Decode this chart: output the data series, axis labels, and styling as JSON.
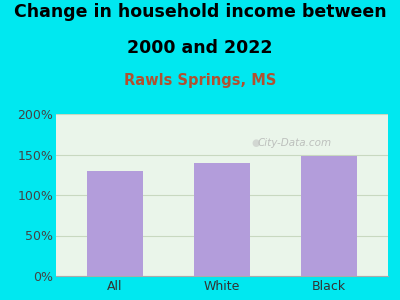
{
  "title_line1": "Change in household income between",
  "title_line2": "2000 and 2022",
  "subtitle": "Rawls Springs, MS",
  "categories": [
    "All",
    "White",
    "Black"
  ],
  "values": [
    130,
    140,
    148
  ],
  "bar_color": "#b39ddb",
  "background_color": "#00e8f0",
  "plot_bg_color": "#eaf5ea",
  "ylim": [
    0,
    200
  ],
  "yticks": [
    0,
    50,
    100,
    150,
    200
  ],
  "ytick_labels": [
    "0%",
    "50%",
    "100%",
    "150%",
    "200%"
  ],
  "title_fontsize": 12.5,
  "subtitle_fontsize": 10.5,
  "subtitle_color": "#b05030",
  "tick_fontsize": 9,
  "xtick_fontsize": 9,
  "watermark": "City-Data.com",
  "grid_color": "#c8d8c0"
}
